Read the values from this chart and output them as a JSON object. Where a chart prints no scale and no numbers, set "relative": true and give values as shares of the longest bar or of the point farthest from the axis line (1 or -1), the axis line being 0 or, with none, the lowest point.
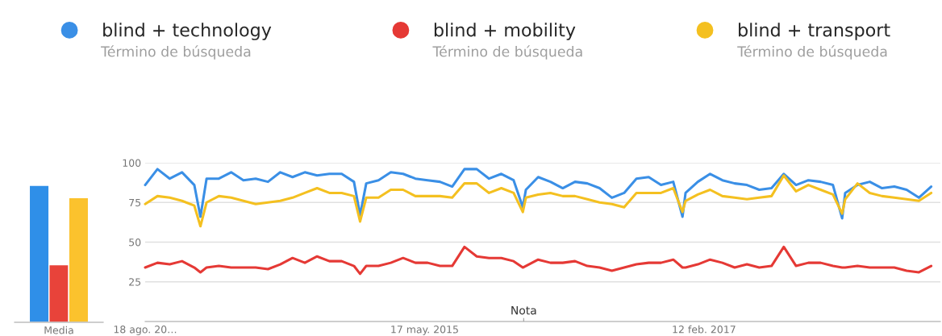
{
  "chart_data": [
    {
      "type": "bar",
      "relative": true,
      "categories": [
        "Media"
      ],
      "series": [
        {
          "color": "#2f8fe8",
          "values": [
            1
          ]
        },
        {
          "color": "#e8433a",
          "values": [
            0.42
          ]
        },
        {
          "color": "#fbc22d",
          "values": [
            0.91
          ]
        }
      ]
    },
    {
      "type": "line",
      "legend": "top",
      "grid": "y",
      "ylim": [
        0,
        100
      ],
      "yticks": [
        25,
        50,
        75,
        100
      ],
      "xlim": [
        "2013-08-18",
        "2018-08-05"
      ],
      "xticks": [
        {
          "value": "2013-08-18",
          "label": "18 ago. 20…"
        },
        {
          "value": "2015-05-17",
          "label": "17 may. 2015"
        },
        {
          "value": "2017-02-12",
          "label": "12 feb. 2017"
        }
      ],
      "annotations": [
        "Término de búsqueda",
        "Término de búsqueda",
        "Término de búsqueda",
        "Nota"
      ],
      "x": [
        "2013-08-18",
        "2013-09-15",
        "2013-10-13",
        "2013-11-10",
        "2013-12-08",
        "2013-12-22",
        "2014-01-05",
        "2014-02-02",
        "2014-03-02",
        "2014-03-30",
        "2014-04-27",
        "2014-05-25",
        "2014-06-22",
        "2014-07-20",
        "2014-08-17",
        "2014-09-14",
        "2014-10-12",
        "2014-11-09",
        "2014-12-07",
        "2014-12-21",
        "2015-01-04",
        "2015-02-01",
        "2015-03-01",
        "2015-03-29",
        "2015-04-26",
        "2015-05-24",
        "2015-06-21",
        "2015-07-19",
        "2015-08-16",
        "2015-09-13",
        "2015-10-11",
        "2015-11-08",
        "2015-12-06",
        "2015-12-27",
        "2016-01-03",
        "2016-01-31",
        "2016-02-28",
        "2016-03-27",
        "2016-04-24",
        "2016-05-22",
        "2016-06-19",
        "2016-07-17",
        "2016-08-14",
        "2016-09-11",
        "2016-10-09",
        "2016-11-06",
        "2016-12-04",
        "2016-12-25",
        "2017-01-01",
        "2017-01-29",
        "2017-02-26",
        "2017-03-26",
        "2017-04-23",
        "2017-05-21",
        "2017-06-18",
        "2017-07-16",
        "2017-08-13",
        "2017-09-10",
        "2017-10-08",
        "2017-11-05",
        "2017-12-03",
        "2017-12-24",
        "2017-12-31",
        "2018-01-28",
        "2018-02-25",
        "2018-03-25",
        "2018-04-22",
        "2018-05-20",
        "2018-06-17",
        "2018-07-15"
      ],
      "series": [
        {
          "name": "blind + technology",
          "color": "#3a8fe6",
          "values": [
            86,
            96,
            90,
            94,
            86,
            66,
            90,
            90,
            94,
            89,
            90,
            88,
            94,
            91,
            94,
            92,
            93,
            93,
            88,
            67,
            87,
            89,
            94,
            93,
            90,
            89,
            88,
            85,
            96,
            96,
            90,
            93,
            89,
            72,
            83,
            91,
            88,
            84,
            88,
            87,
            84,
            78,
            81,
            90,
            91,
            86,
            88,
            66,
            81,
            88,
            93,
            89,
            87,
            86,
            83,
            84,
            93,
            86,
            89,
            88,
            86,
            65,
            81,
            86,
            88,
            84,
            85,
            83,
            78,
            85
          ]
        },
        {
          "name": "blind + mobility",
          "color": "#e53935",
          "values": [
            34,
            37,
            36,
            38,
            34,
            31,
            34,
            35,
            34,
            34,
            34,
            33,
            36,
            40,
            37,
            41,
            38,
            38,
            35,
            30,
            35,
            35,
            37,
            40,
            37,
            37,
            35,
            35,
            47,
            41,
            40,
            40,
            38,
            34,
            35,
            39,
            37,
            37,
            38,
            35,
            34,
            32,
            34,
            36,
            37,
            37,
            39,
            34,
            34,
            36,
            39,
            37,
            34,
            36,
            34,
            35,
            47,
            35,
            37,
            37,
            35,
            34,
            34,
            35,
            34,
            34,
            34,
            32,
            31,
            35
          ]
        },
        {
          "name": "blind + transport",
          "color": "#f4c020",
          "values": [
            74,
            79,
            78,
            76,
            73,
            60,
            75,
            79,
            78,
            76,
            74,
            75,
            76,
            78,
            81,
            84,
            81,
            81,
            79,
            63,
            78,
            78,
            83,
            83,
            79,
            79,
            79,
            78,
            87,
            87,
            81,
            84,
            81,
            69,
            78,
            80,
            81,
            79,
            79,
            77,
            75,
            74,
            72,
            81,
            81,
            81,
            84,
            69,
            76,
            80,
            83,
            79,
            78,
            77,
            78,
            79,
            92,
            82,
            86,
            83,
            80,
            68,
            77,
            87,
            81,
            79,
            78,
            77,
            76,
            81
          ]
        }
      ]
    }
  ]
}
